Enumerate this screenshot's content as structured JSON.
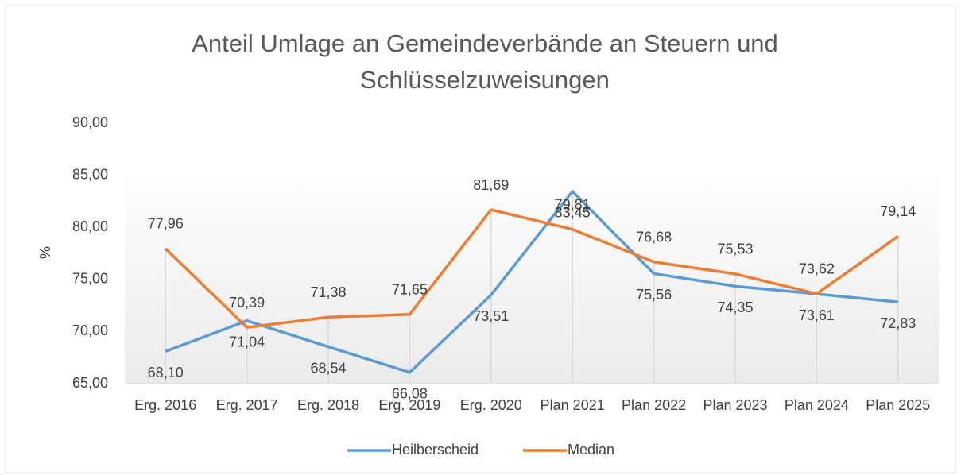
{
  "chart_data": {
    "type": "line",
    "title": "Anteil Umlage an Gemeindeverbände an Steuern und Schlüsselzuweisungen",
    "y_label": "%",
    "categories": [
      "Erg. 2016",
      "Erg. 2017",
      "Erg. 2018",
      "Erg. 2019",
      "Erg. 2020",
      "Plan 2021",
      "Plan 2022",
      "Plan 2023",
      "Plan 2024",
      "Plan 2025"
    ],
    "series": [
      {
        "name": "Heilberscheid",
        "color": "#5b9bd5",
        "values": [
          68.1,
          71.04,
          68.54,
          66.08,
          73.51,
          83.45,
          75.56,
          74.35,
          73.61,
          72.83
        ],
        "value_labels": [
          "68,10",
          "71,04",
          "68,54",
          "66,08",
          "73,51",
          "83,45",
          "75,56",
          "74,35",
          "73,61",
          "72,83"
        ]
      },
      {
        "name": "Median",
        "color": "#ed7d31",
        "values": [
          77.96,
          70.39,
          71.38,
          71.65,
          81.69,
          79.81,
          76.68,
          75.53,
          73.62,
          79.14
        ],
        "value_labels": [
          "77,96",
          "70,39",
          "71,38",
          "71,65",
          "81,69",
          "79,81",
          "76,68",
          "75,53",
          "73,62",
          "79,14"
        ]
      }
    ],
    "ylim": [
      65,
      90
    ],
    "yticks": [
      {
        "value": 65,
        "label": "65,00"
      },
      {
        "value": 70,
        "label": "70,00"
      },
      {
        "value": 75,
        "label": "75,00"
      },
      {
        "value": 80,
        "label": "80,00"
      },
      {
        "value": 85,
        "label": "85,00"
      },
      {
        "value": 90,
        "label": "90,00"
      }
    ],
    "legend": "bottom"
  }
}
